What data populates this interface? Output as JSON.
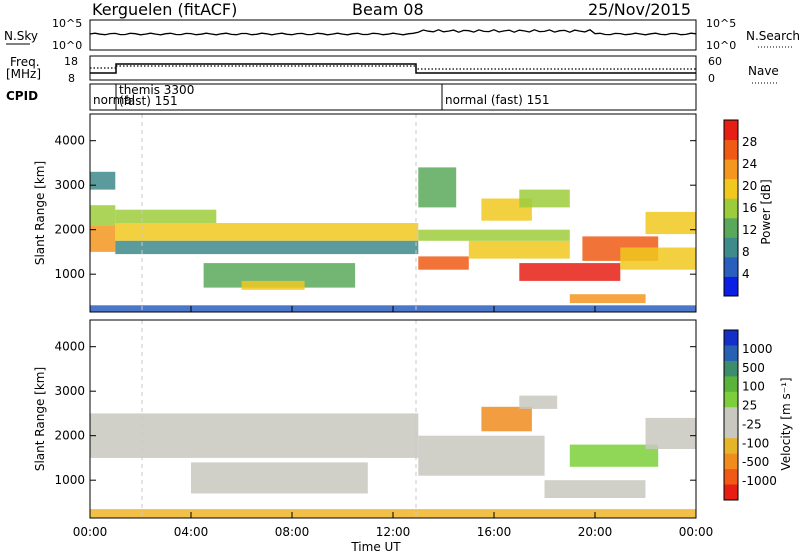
{
  "header": {
    "station": "Kerguelen (fitACF)",
    "beam": "Beam 08",
    "date": "25/Nov/2015"
  },
  "noise_panel": {
    "left_label": "N.Sky",
    "right_label": "N.Search",
    "left_ticks": [
      "10^5",
      "10^0"
    ],
    "right_ticks": [
      "10^5",
      "10^0"
    ]
  },
  "freq_panel": {
    "left_label_1": "Freq.",
    "left_label_2": "[MHz]",
    "right_label": "Nave",
    "left_ticks": [
      "18",
      "8"
    ],
    "right_ticks": [
      "60",
      "0"
    ]
  },
  "cpid_panel": {
    "label": "CPID",
    "segments": [
      {
        "text": "normal",
        "start_hour": 0.0,
        "end_hour": 1.0
      },
      {
        "text": "themis 3300",
        "start_hour": 1.0,
        "end_hour": 13.0
      },
      {
        "text": "(fast) 151",
        "start_hour": 1.0,
        "end_hour": 13.0
      },
      {
        "text": "normal (fast) 151",
        "start_hour": 13.0,
        "end_hour": 24.0
      }
    ]
  },
  "x_axis": {
    "label": "Time UT",
    "ticks": [
      "00:00",
      "04:00",
      "08:00",
      "12:00",
      "16:00",
      "20:00",
      "00:00"
    ]
  },
  "power_colorbar": {
    "label": "Power [dB]",
    "ticks": [
      "4",
      "8",
      "12",
      "16",
      "20",
      "24",
      "28"
    ],
    "colors": [
      "#0a1ee6",
      "#2a5fc0",
      "#3f8a8a",
      "#5aa85a",
      "#9ccc3c",
      "#f0c81e",
      "#f5961e",
      "#f05a14",
      "#e61e14"
    ]
  },
  "velocity_colorbar": {
    "label": "Velocity [m s⁻¹]",
    "ticks": [
      "1000",
      "500",
      "100",
      "25",
      "-25",
      "-100",
      "-500",
      "-1000"
    ],
    "colors": [
      "#1430c8",
      "#2860b4",
      "#3c8c6e",
      "#5ab43c",
      "#7ccf3a",
      "#c8c8c0",
      "#c8c8c0",
      "#e6b428",
      "#f08c1e",
      "#f05a14",
      "#e61e14"
    ]
  },
  "chart_data": [
    {
      "type": "heatmap",
      "title": "",
      "xlabel": "Time UT",
      "ylabel": "Slant Range [km]",
      "xlim": [
        0,
        24
      ],
      "ylim": [
        150,
        4600
      ],
      "yticks": [
        "1000",
        "2000",
        "3000",
        "4000"
      ],
      "colorbar": "Power [dB]",
      "bands": [
        {
          "t0": 0.0,
          "t1": 1.0,
          "r0": 1500,
          "r1": 2100,
          "value": 24
        },
        {
          "t0": 0.0,
          "t1": 1.0,
          "r0": 2100,
          "r1": 2550,
          "value": 14
        },
        {
          "t0": 1.0,
          "t1": 13.0,
          "r0": 1750,
          "r1": 2150,
          "value": 18
        },
        {
          "t0": 1.0,
          "t1": 13.0,
          "r0": 1450,
          "r1": 1750,
          "value": 10
        },
        {
          "t0": 1.0,
          "t1": 5.0,
          "r0": 2150,
          "r1": 2450,
          "value": 14
        },
        {
          "t0": 4.5,
          "t1": 10.5,
          "r0": 700,
          "r1": 1250,
          "value": 12
        },
        {
          "t0": 6.0,
          "t1": 8.5,
          "r0": 650,
          "r1": 850,
          "value": 18
        },
        {
          "t0": 13.0,
          "t1": 15.0,
          "r0": 1100,
          "r1": 1400,
          "value": 27
        },
        {
          "t0": 15.0,
          "t1": 19.0,
          "r0": 1350,
          "r1": 1750,
          "value": 18
        },
        {
          "t0": 13.0,
          "t1": 19.0,
          "r0": 1750,
          "r1": 2000,
          "value": 15
        },
        {
          "t0": 15.5,
          "t1": 17.5,
          "r0": 2200,
          "r1": 2700,
          "value": 19
        },
        {
          "t0": 17.0,
          "t1": 19.0,
          "r0": 2500,
          "r1": 2900,
          "value": 17
        },
        {
          "t0": 19.5,
          "t1": 22.5,
          "r0": 1300,
          "r1": 1850,
          "value": 26
        },
        {
          "t0": 17.0,
          "t1": 21.0,
          "r0": 850,
          "r1": 1250,
          "value": 28
        },
        {
          "t0": 21.0,
          "t1": 24.0,
          "r0": 1100,
          "r1": 1600,
          "value": 18
        },
        {
          "t0": 22.0,
          "t1": 24.0,
          "r0": 1900,
          "r1": 2400,
          "value": 19
        },
        {
          "t0": 19.0,
          "t1": 22.0,
          "r0": 350,
          "r1": 550,
          "value": 22
        },
        {
          "t0": 0.0,
          "t1": 24.0,
          "r0": 150,
          "r1": 300,
          "value": 5
        },
        {
          "t0": 0.0,
          "t1": 1.0,
          "r0": 2900,
          "r1": 3300,
          "value": 10
        },
        {
          "t0": 13.0,
          "t1": 14.5,
          "r0": 2500,
          "r1": 3400,
          "value": 12
        }
      ]
    },
    {
      "type": "heatmap",
      "title": "",
      "xlabel": "Time UT",
      "ylabel": "Slant Range [km]",
      "xlim": [
        0,
        24
      ],
      "ylim": [
        150,
        4600
      ],
      "yticks": [
        "1000",
        "2000",
        "3000",
        "4000"
      ],
      "colorbar": "Velocity [m s⁻¹]",
      "bands": [
        {
          "t0": 0.0,
          "t1": 13.0,
          "r0": 1500,
          "r1": 2500,
          "value": 0
        },
        {
          "t0": 4.0,
          "t1": 11.0,
          "r0": 700,
          "r1": 1400,
          "value": 0
        },
        {
          "t0": 13.0,
          "t1": 18.0,
          "r0": 1100,
          "r1": 2000,
          "value": 0
        },
        {
          "t0": 15.5,
          "t1": 17.5,
          "r0": 2100,
          "r1": 2650,
          "value": -300
        },
        {
          "t0": 17.0,
          "t1": 18.5,
          "r0": 2600,
          "r1": 2900,
          "value": 60
        },
        {
          "t0": 19.0,
          "t1": 22.5,
          "r0": 1300,
          "r1": 1800,
          "value": 150
        },
        {
          "t0": 22.0,
          "t1": 24.0,
          "r0": 1700,
          "r1": 2400,
          "value": 0
        },
        {
          "t0": 18.0,
          "t1": 22.0,
          "r0": 600,
          "r1": 1000,
          "value": 0
        },
        {
          "t0": 0.0,
          "t1": 24.0,
          "r0": 150,
          "r1": 350,
          "value": -100
        }
      ]
    }
  ]
}
